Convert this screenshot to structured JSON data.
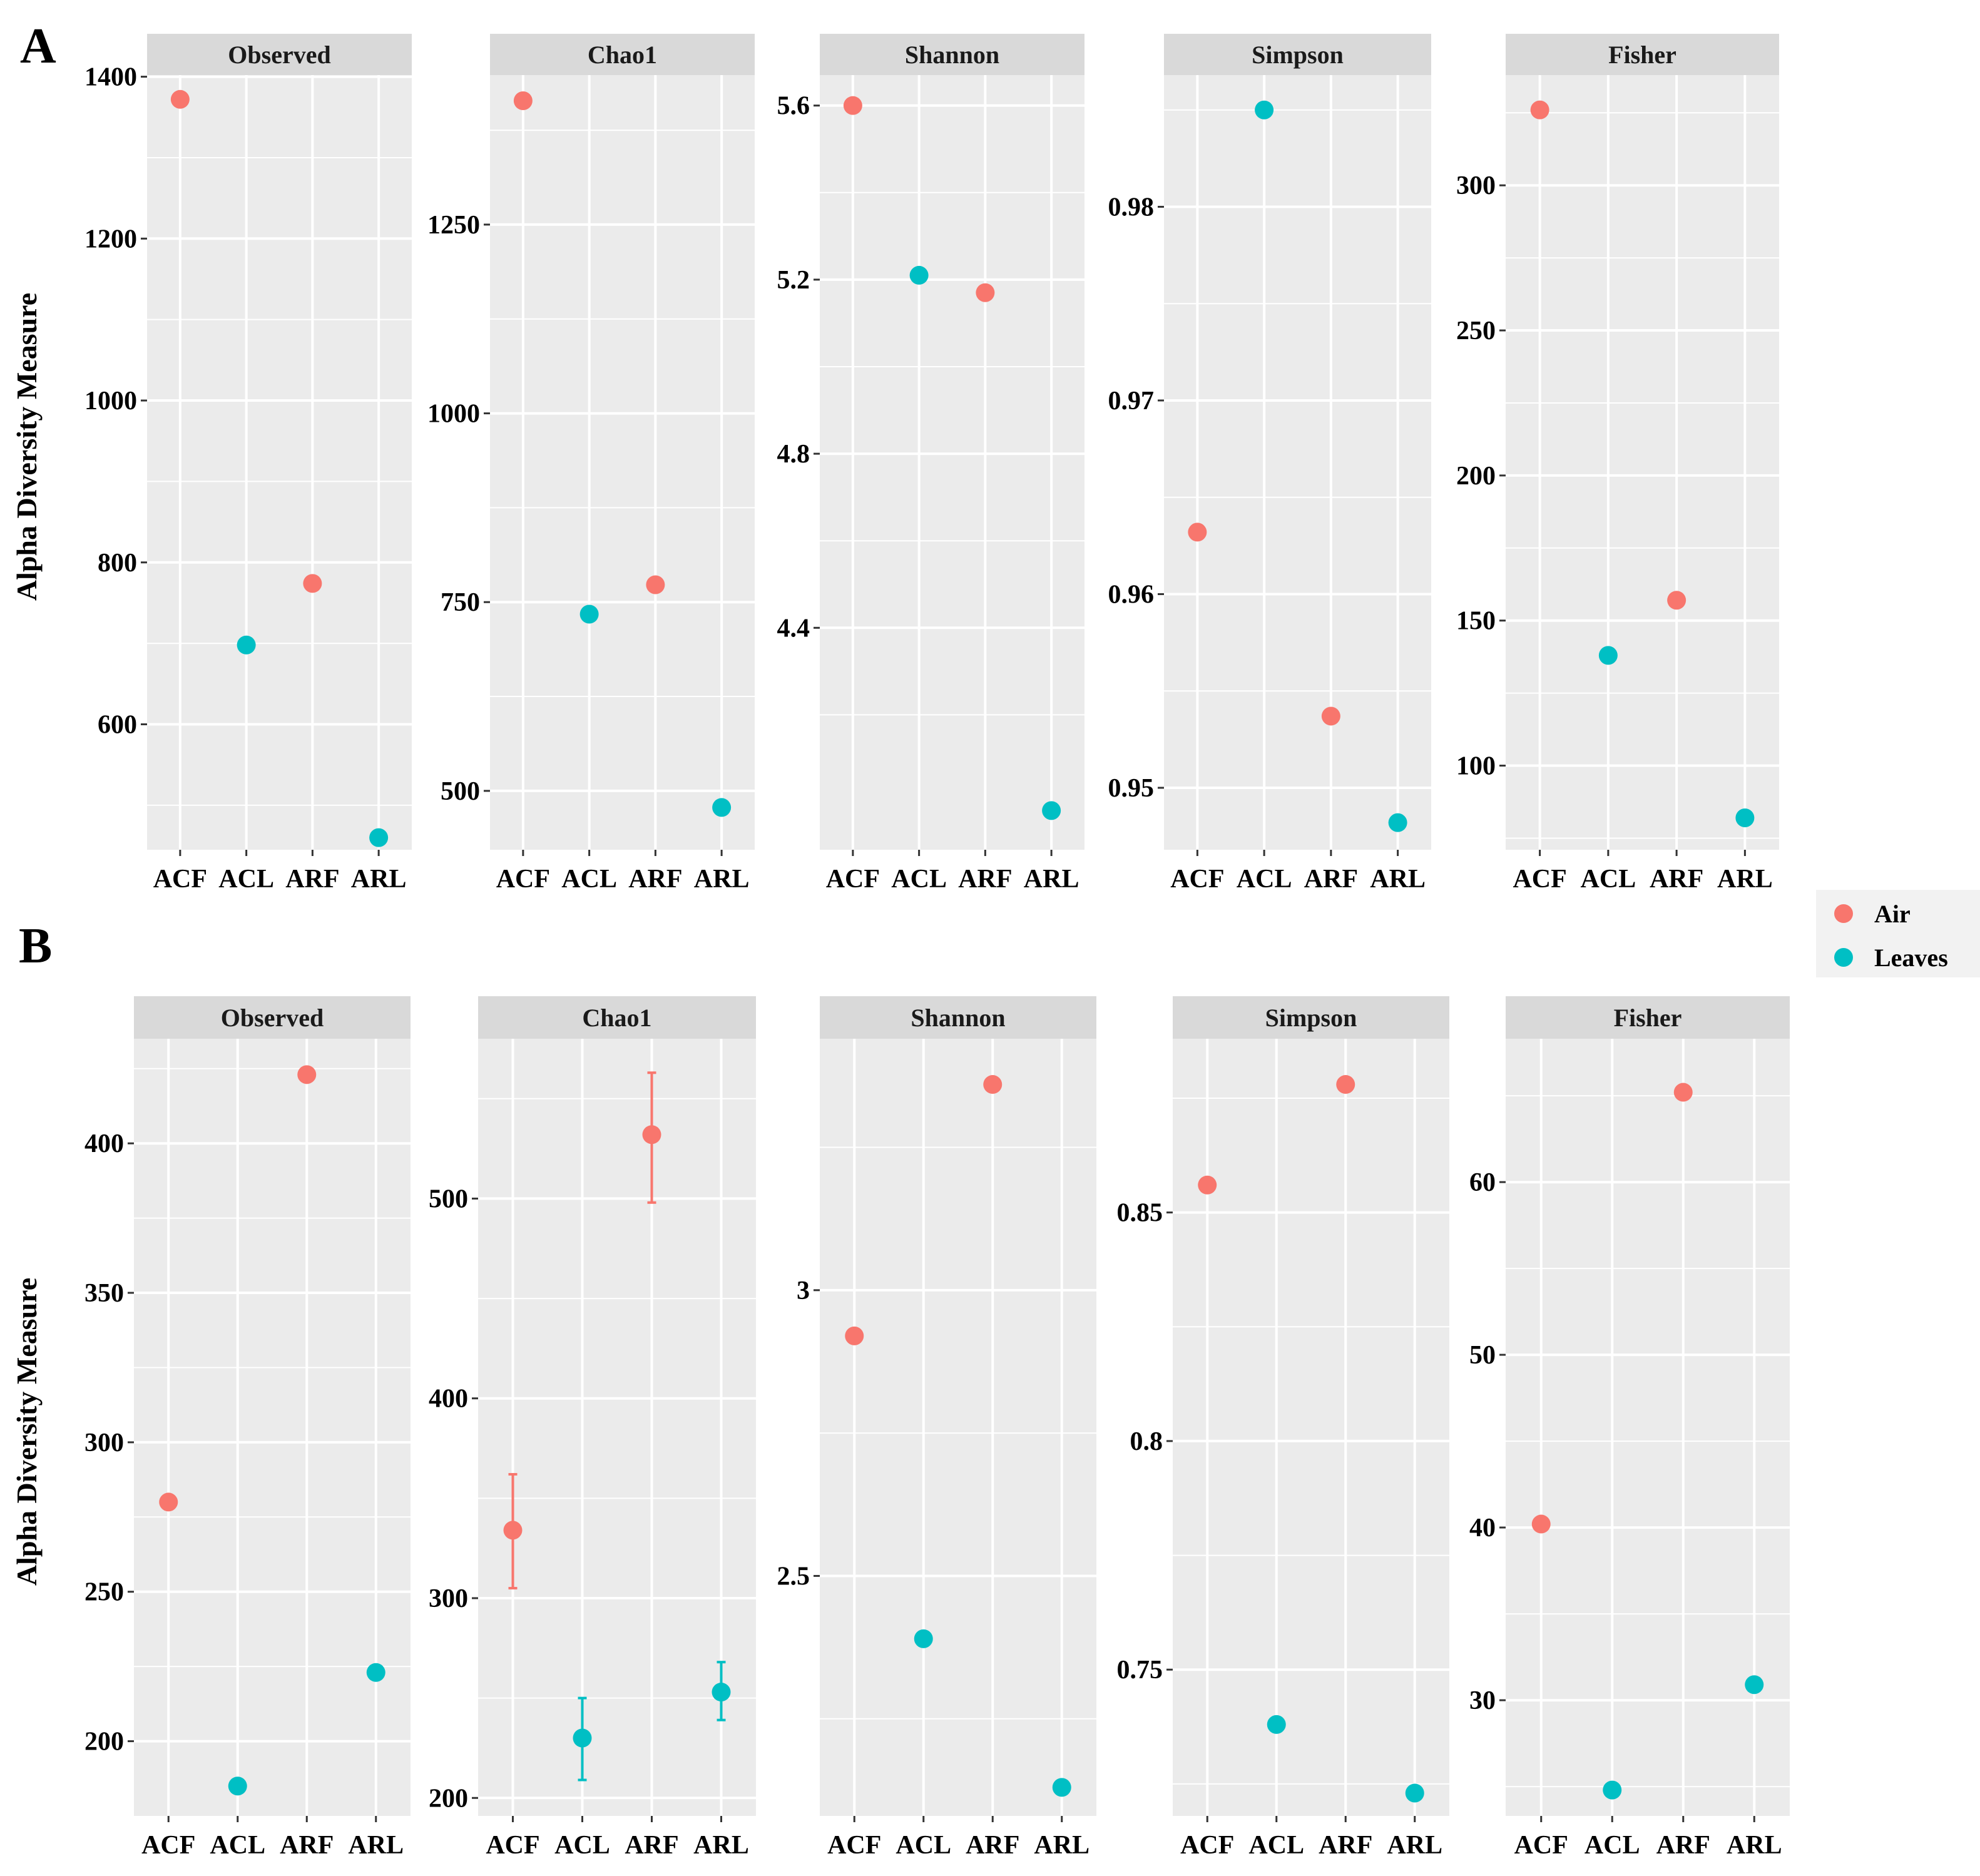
{
  "figure": {
    "panels": [
      {
        "label": "A",
        "ylabel": "Alpha Diversity Measure"
      },
      {
        "label": "B",
        "ylabel": "Alpha Diversity Measure"
      }
    ],
    "legend": {
      "items": [
        {
          "name": "Air",
          "color": "#F8766D"
        },
        {
          "name": "Leaves",
          "color": "#00BFC4"
        }
      ]
    }
  },
  "chart_data": [
    {
      "type": "scatter",
      "panel": "A",
      "title": "Observed",
      "categories": [
        "ACF",
        "ACL",
        "ARF",
        "ARL"
      ],
      "values": [
        1372,
        698,
        774,
        460
      ],
      "groups": [
        "Air",
        "Leaves",
        "Air",
        "Leaves"
      ],
      "ylim": [
        445,
        1402
      ],
      "yticks": [
        600,
        800,
        1000,
        1200,
        1400
      ],
      "xlabel": "",
      "ylabel": "Alpha Diversity Measure"
    },
    {
      "type": "scatter",
      "panel": "A",
      "title": "Chao1",
      "categories": [
        "ACF",
        "ACL",
        "ARF",
        "ARL"
      ],
      "values": [
        1414,
        734,
        773,
        478
      ],
      "groups": [
        "Air",
        "Leaves",
        "Air",
        "Leaves"
      ],
      "ylim": [
        422,
        1448
      ],
      "yticks": [
        500,
        750,
        1000,
        1250
      ],
      "xlabel": "",
      "ylabel": ""
    },
    {
      "type": "scatter",
      "panel": "A",
      "title": "Shannon",
      "categories": [
        "ACF",
        "ACL",
        "ARF",
        "ARL"
      ],
      "values": [
        5.6,
        5.21,
        5.17,
        3.98
      ],
      "groups": [
        "Air",
        "Leaves",
        "Air",
        "Leaves"
      ],
      "ylim": [
        3.89,
        5.67
      ],
      "yticks": [
        4.4,
        4.8,
        5.2,
        5.6
      ],
      "xlabel": "",
      "ylabel": ""
    },
    {
      "type": "scatter",
      "panel": "A",
      "title": "Simpson",
      "categories": [
        "ACF",
        "ACL",
        "ARF",
        "ARL"
      ],
      "values": [
        0.9632,
        0.985,
        0.9537,
        0.9482
      ],
      "groups": [
        "Air",
        "Leaves",
        "Air",
        "Leaves"
      ],
      "ylim": [
        0.9468,
        0.9868
      ],
      "yticks": [
        0.95,
        0.96,
        0.97,
        0.98
      ],
      "xlabel": "",
      "ylabel": ""
    },
    {
      "type": "scatter",
      "panel": "A",
      "title": "Fisher",
      "categories": [
        "ACF",
        "ACL",
        "ARF",
        "ARL"
      ],
      "values": [
        326,
        138,
        157,
        82
      ],
      "groups": [
        "Air",
        "Leaves",
        "Air",
        "Leaves"
      ],
      "ylim": [
        71,
        338
      ],
      "yticks": [
        100,
        150,
        200,
        250,
        300
      ],
      "xlabel": "",
      "ylabel": ""
    },
    {
      "type": "scatter",
      "panel": "B",
      "title": "Observed",
      "categories": [
        "ACF",
        "ACL",
        "ARF",
        "ARL"
      ],
      "values": [
        280,
        185,
        423,
        223
      ],
      "groups": [
        "Air",
        "Leaves",
        "Air",
        "Leaves"
      ],
      "ylim": [
        175,
        435
      ],
      "yticks": [
        200,
        250,
        300,
        350,
        400
      ],
      "xlabel": "",
      "ylabel": "Alpha Diversity Measure"
    },
    {
      "type": "scatter",
      "panel": "B",
      "title": "Chao1",
      "categories": [
        "ACF",
        "ACL",
        "ARF",
        "ARL"
      ],
      "values": [
        334,
        230,
        532,
        253
      ],
      "error_low": [
        305,
        209,
        498,
        239
      ],
      "error_high": [
        362,
        250,
        563,
        268
      ],
      "groups": [
        "Air",
        "Leaves",
        "Air",
        "Leaves"
      ],
      "ylim": [
        191,
        580
      ],
      "yticks": [
        200,
        300,
        400,
        500
      ],
      "xlabel": "",
      "ylabel": ""
    },
    {
      "type": "scatter",
      "panel": "B",
      "title": "Shannon",
      "categories": [
        "ACF",
        "ACL",
        "ARF",
        "ARL"
      ],
      "values": [
        2.92,
        2.39,
        3.36,
        2.13
      ],
      "groups": [
        "Air",
        "Leaves",
        "Air",
        "Leaves"
      ],
      "ylim": [
        2.08,
        3.44
      ],
      "yticks": [
        2.5,
        3.0
      ],
      "xlabel": "",
      "ylabel": ""
    },
    {
      "type": "scatter",
      "panel": "B",
      "title": "Simpson",
      "categories": [
        "ACF",
        "ACL",
        "ARF",
        "ARL"
      ],
      "values": [
        0.856,
        0.738,
        0.878,
        0.723
      ],
      "groups": [
        "Air",
        "Leaves",
        "Air",
        "Leaves"
      ],
      "ylim": [
        0.718,
        0.888
      ],
      "yticks": [
        0.75,
        0.8,
        0.85
      ],
      "xlabel": "",
      "ylabel": ""
    },
    {
      "type": "scatter",
      "panel": "B",
      "title": "Fisher",
      "categories": [
        "ACF",
        "ACL",
        "ARF",
        "ARL"
      ],
      "values": [
        40.2,
        24.8,
        65.2,
        30.9
      ],
      "groups": [
        "Air",
        "Leaves",
        "Air",
        "Leaves"
      ],
      "ylim": [
        23.3,
        68.3
      ],
      "yticks": [
        30,
        40,
        50,
        60
      ],
      "xlabel": "",
      "ylabel": ""
    }
  ]
}
